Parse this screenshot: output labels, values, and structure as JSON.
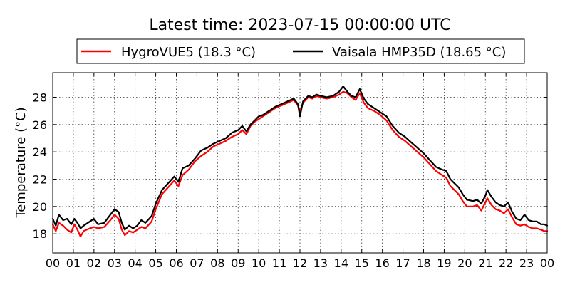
{
  "chart_data": {
    "type": "line",
    "title": "Latest time: 2023-07-15 00:00:00 UTC",
    "ylabel": "Temperature (°C)",
    "xlabel": "",
    "xlim": [
      0,
      24
    ],
    "ylim": [
      16.6,
      29.8
    ],
    "x_ticks": [
      0,
      1,
      2,
      3,
      4,
      5,
      6,
      7,
      8,
      9,
      10,
      11,
      12,
      13,
      14,
      15,
      16,
      17,
      18,
      19,
      20,
      21,
      22,
      23,
      24
    ],
    "x_tick_labels": [
      "00",
      "01",
      "02",
      "03",
      "04",
      "05",
      "06",
      "07",
      "08",
      "09",
      "10",
      "11",
      "12",
      "13",
      "14",
      "15",
      "16",
      "17",
      "18",
      "19",
      "20",
      "21",
      "22",
      "23",
      "00"
    ],
    "y_ticks": [
      18,
      20,
      22,
      24,
      26,
      28
    ],
    "y_tick_labels": [
      "18",
      "20",
      "22",
      "24",
      "26",
      "28"
    ],
    "grid": true,
    "legend_position": "top",
    "series": [
      {
        "name": "HygroVUE5 (18.3 °C)",
        "color": "#ff0000",
        "points": [
          [
            0.0,
            18.7
          ],
          [
            0.15,
            18.2
          ],
          [
            0.3,
            18.8
          ],
          [
            0.5,
            18.6
          ],
          [
            0.7,
            18.3
          ],
          [
            0.9,
            18.1
          ],
          [
            1.05,
            18.7
          ],
          [
            1.2,
            18.3
          ],
          [
            1.35,
            17.8
          ],
          [
            1.5,
            18.2
          ],
          [
            1.8,
            18.4
          ],
          [
            2.0,
            18.5
          ],
          [
            2.2,
            18.4
          ],
          [
            2.5,
            18.5
          ],
          [
            2.8,
            19.0
          ],
          [
            3.0,
            19.4
          ],
          [
            3.2,
            19.1
          ],
          [
            3.35,
            18.3
          ],
          [
            3.5,
            17.9
          ],
          [
            3.7,
            18.2
          ],
          [
            3.9,
            18.1
          ],
          [
            4.1,
            18.3
          ],
          [
            4.3,
            18.5
          ],
          [
            4.5,
            18.4
          ],
          [
            4.8,
            18.9
          ],
          [
            5.0,
            19.8
          ],
          [
            5.3,
            20.9
          ],
          [
            5.6,
            21.4
          ],
          [
            5.9,
            21.9
          ],
          [
            6.1,
            21.5
          ],
          [
            6.3,
            22.3
          ],
          [
            6.6,
            22.7
          ],
          [
            6.9,
            23.3
          ],
          [
            7.2,
            23.7
          ],
          [
            7.5,
            24.0
          ],
          [
            7.8,
            24.4
          ],
          [
            8.1,
            24.6
          ],
          [
            8.4,
            24.8
          ],
          [
            8.7,
            25.1
          ],
          [
            9.0,
            25.3
          ],
          [
            9.2,
            25.6
          ],
          [
            9.4,
            25.3
          ],
          [
            9.6,
            25.9
          ],
          [
            9.8,
            26.2
          ],
          [
            10.0,
            26.4
          ],
          [
            10.2,
            26.6
          ],
          [
            10.5,
            26.9
          ],
          [
            10.8,
            27.2
          ],
          [
            11.1,
            27.4
          ],
          [
            11.4,
            27.6
          ],
          [
            11.7,
            27.8
          ],
          [
            11.9,
            27.4
          ],
          [
            12.0,
            27.0
          ],
          [
            12.15,
            27.6
          ],
          [
            12.4,
            28.0
          ],
          [
            12.6,
            27.9
          ],
          [
            12.8,
            28.1
          ],
          [
            13.0,
            28.0
          ],
          [
            13.3,
            27.9
          ],
          [
            13.6,
            28.0
          ],
          [
            13.9,
            28.2
          ],
          [
            14.1,
            28.4
          ],
          [
            14.3,
            28.3
          ],
          [
            14.5,
            28.0
          ],
          [
            14.7,
            27.8
          ],
          [
            14.9,
            28.3
          ],
          [
            15.1,
            27.6
          ],
          [
            15.3,
            27.2
          ],
          [
            15.6,
            27.0
          ],
          [
            15.9,
            26.7
          ],
          [
            16.2,
            26.3
          ],
          [
            16.5,
            25.6
          ],
          [
            16.8,
            25.1
          ],
          [
            17.1,
            24.8
          ],
          [
            17.4,
            24.4
          ],
          [
            17.7,
            24.0
          ],
          [
            18.0,
            23.6
          ],
          [
            18.3,
            23.1
          ],
          [
            18.6,
            22.6
          ],
          [
            18.9,
            22.3
          ],
          [
            19.1,
            22.1
          ],
          [
            19.3,
            21.5
          ],
          [
            19.5,
            21.2
          ],
          [
            19.7,
            20.9
          ],
          [
            19.9,
            20.4
          ],
          [
            20.1,
            20.0
          ],
          [
            20.4,
            20.0
          ],
          [
            20.6,
            20.1
          ],
          [
            20.8,
            19.7
          ],
          [
            21.0,
            20.3
          ],
          [
            21.1,
            20.6
          ],
          [
            21.3,
            20.1
          ],
          [
            21.5,
            19.8
          ],
          [
            21.7,
            19.7
          ],
          [
            21.9,
            19.5
          ],
          [
            22.1,
            19.8
          ],
          [
            22.3,
            19.2
          ],
          [
            22.5,
            18.7
          ],
          [
            22.7,
            18.6
          ],
          [
            22.9,
            18.7
          ],
          [
            23.1,
            18.5
          ],
          [
            23.3,
            18.4
          ],
          [
            23.5,
            18.4
          ],
          [
            23.7,
            18.3
          ],
          [
            23.85,
            18.2
          ],
          [
            24.0,
            18.2
          ]
        ]
      },
      {
        "name": "Vaisala HMP35D (18.65 °C)",
        "color": "#000000",
        "points": [
          [
            0.0,
            19.1
          ],
          [
            0.15,
            18.6
          ],
          [
            0.3,
            19.4
          ],
          [
            0.5,
            19.0
          ],
          [
            0.7,
            19.1
          ],
          [
            0.9,
            18.7
          ],
          [
            1.05,
            19.1
          ],
          [
            1.2,
            18.8
          ],
          [
            1.35,
            18.4
          ],
          [
            1.5,
            18.6
          ],
          [
            1.8,
            18.9
          ],
          [
            2.0,
            19.1
          ],
          [
            2.2,
            18.7
          ],
          [
            2.5,
            18.8
          ],
          [
            2.8,
            19.4
          ],
          [
            3.0,
            19.8
          ],
          [
            3.2,
            19.6
          ],
          [
            3.35,
            18.8
          ],
          [
            3.5,
            18.3
          ],
          [
            3.7,
            18.6
          ],
          [
            3.9,
            18.4
          ],
          [
            4.1,
            18.6
          ],
          [
            4.3,
            19.0
          ],
          [
            4.5,
            18.8
          ],
          [
            4.8,
            19.3
          ],
          [
            5.0,
            20.2
          ],
          [
            5.3,
            21.2
          ],
          [
            5.6,
            21.7
          ],
          [
            5.9,
            22.2
          ],
          [
            6.1,
            21.8
          ],
          [
            6.3,
            22.8
          ],
          [
            6.6,
            23.0
          ],
          [
            6.9,
            23.5
          ],
          [
            7.2,
            24.1
          ],
          [
            7.5,
            24.3
          ],
          [
            7.8,
            24.6
          ],
          [
            8.1,
            24.8
          ],
          [
            8.4,
            25.0
          ],
          [
            8.7,
            25.4
          ],
          [
            9.0,
            25.6
          ],
          [
            9.2,
            25.9
          ],
          [
            9.4,
            25.5
          ],
          [
            9.6,
            26.0
          ],
          [
            9.8,
            26.3
          ],
          [
            10.0,
            26.6
          ],
          [
            10.2,
            26.7
          ],
          [
            10.5,
            27.0
          ],
          [
            10.8,
            27.3
          ],
          [
            11.1,
            27.5
          ],
          [
            11.4,
            27.7
          ],
          [
            11.7,
            27.9
          ],
          [
            11.9,
            27.5
          ],
          [
            12.0,
            26.6
          ],
          [
            12.15,
            27.7
          ],
          [
            12.4,
            28.1
          ],
          [
            12.6,
            28.0
          ],
          [
            12.8,
            28.2
          ],
          [
            13.0,
            28.1
          ],
          [
            13.3,
            28.0
          ],
          [
            13.6,
            28.1
          ],
          [
            13.9,
            28.4
          ],
          [
            14.1,
            28.8
          ],
          [
            14.3,
            28.4
          ],
          [
            14.5,
            28.1
          ],
          [
            14.7,
            28.0
          ],
          [
            14.9,
            28.6
          ],
          [
            15.1,
            27.9
          ],
          [
            15.3,
            27.5
          ],
          [
            15.6,
            27.2
          ],
          [
            15.9,
            26.9
          ],
          [
            16.2,
            26.6
          ],
          [
            16.5,
            25.9
          ],
          [
            16.8,
            25.4
          ],
          [
            17.1,
            25.1
          ],
          [
            17.4,
            24.7
          ],
          [
            17.7,
            24.3
          ],
          [
            18.0,
            23.9
          ],
          [
            18.3,
            23.4
          ],
          [
            18.6,
            22.9
          ],
          [
            18.9,
            22.7
          ],
          [
            19.1,
            22.6
          ],
          [
            19.3,
            22.0
          ],
          [
            19.5,
            21.7
          ],
          [
            19.7,
            21.4
          ],
          [
            19.9,
            20.9
          ],
          [
            20.1,
            20.5
          ],
          [
            20.4,
            20.4
          ],
          [
            20.6,
            20.5
          ],
          [
            20.8,
            20.2
          ],
          [
            21.0,
            20.8
          ],
          [
            21.1,
            21.2
          ],
          [
            21.3,
            20.7
          ],
          [
            21.5,
            20.3
          ],
          [
            21.7,
            20.1
          ],
          [
            21.9,
            20.0
          ],
          [
            22.1,
            20.3
          ],
          [
            22.3,
            19.6
          ],
          [
            22.5,
            19.1
          ],
          [
            22.7,
            19.0
          ],
          [
            22.9,
            19.4
          ],
          [
            23.1,
            19.0
          ],
          [
            23.3,
            18.9
          ],
          [
            23.5,
            18.9
          ],
          [
            23.7,
            18.7
          ],
          [
            23.85,
            18.7
          ],
          [
            24.0,
            18.6
          ]
        ]
      }
    ]
  }
}
